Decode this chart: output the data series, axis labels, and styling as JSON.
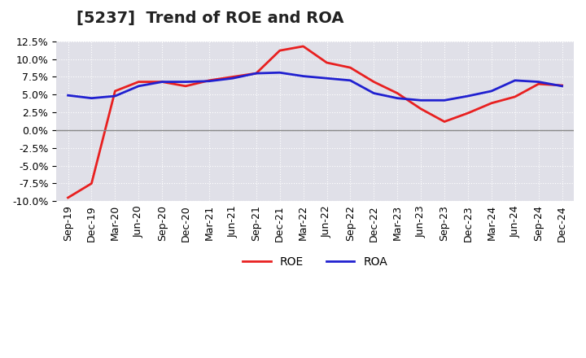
{
  "title": "[5237]  Trend of ROE and ROA",
  "x_labels": [
    "Sep-19",
    "Dec-19",
    "Mar-20",
    "Jun-20",
    "Sep-20",
    "Dec-20",
    "Mar-21",
    "Jun-21",
    "Sep-21",
    "Dec-21",
    "Mar-22",
    "Jun-22",
    "Sep-22",
    "Dec-22",
    "Mar-23",
    "Jun-23",
    "Sep-23",
    "Dec-23",
    "Mar-24",
    "Jun-24",
    "Sep-24",
    "Dec-24"
  ],
  "roe": [
    -9.5,
    -7.5,
    5.5,
    6.8,
    6.8,
    6.2,
    7.0,
    7.5,
    8.0,
    11.2,
    11.8,
    9.5,
    8.8,
    6.8,
    5.2,
    3.0,
    1.2,
    2.4,
    3.8,
    4.7,
    6.5,
    6.3
  ],
  "roa": [
    4.9,
    4.5,
    4.8,
    6.2,
    6.8,
    6.8,
    6.9,
    7.3,
    8.0,
    8.1,
    7.6,
    7.3,
    7.0,
    5.2,
    4.5,
    4.2,
    4.2,
    4.8,
    5.5,
    7.0,
    6.8,
    6.2
  ],
  "roe_color": "#e82020",
  "roa_color": "#2020d0",
  "background_color": "#ffffff",
  "plot_bg_color": "#e0e0e8",
  "ylim": [
    -10.0,
    12.5
  ],
  "yticks": [
    -10.0,
    -7.5,
    -5.0,
    -2.5,
    0.0,
    2.5,
    5.0,
    7.5,
    10.0,
    12.5
  ],
  "grid_color": "#ffffff",
  "zero_line_color": "#888888",
  "line_width": 2.0,
  "title_fontsize": 14,
  "tick_fontsize": 9
}
